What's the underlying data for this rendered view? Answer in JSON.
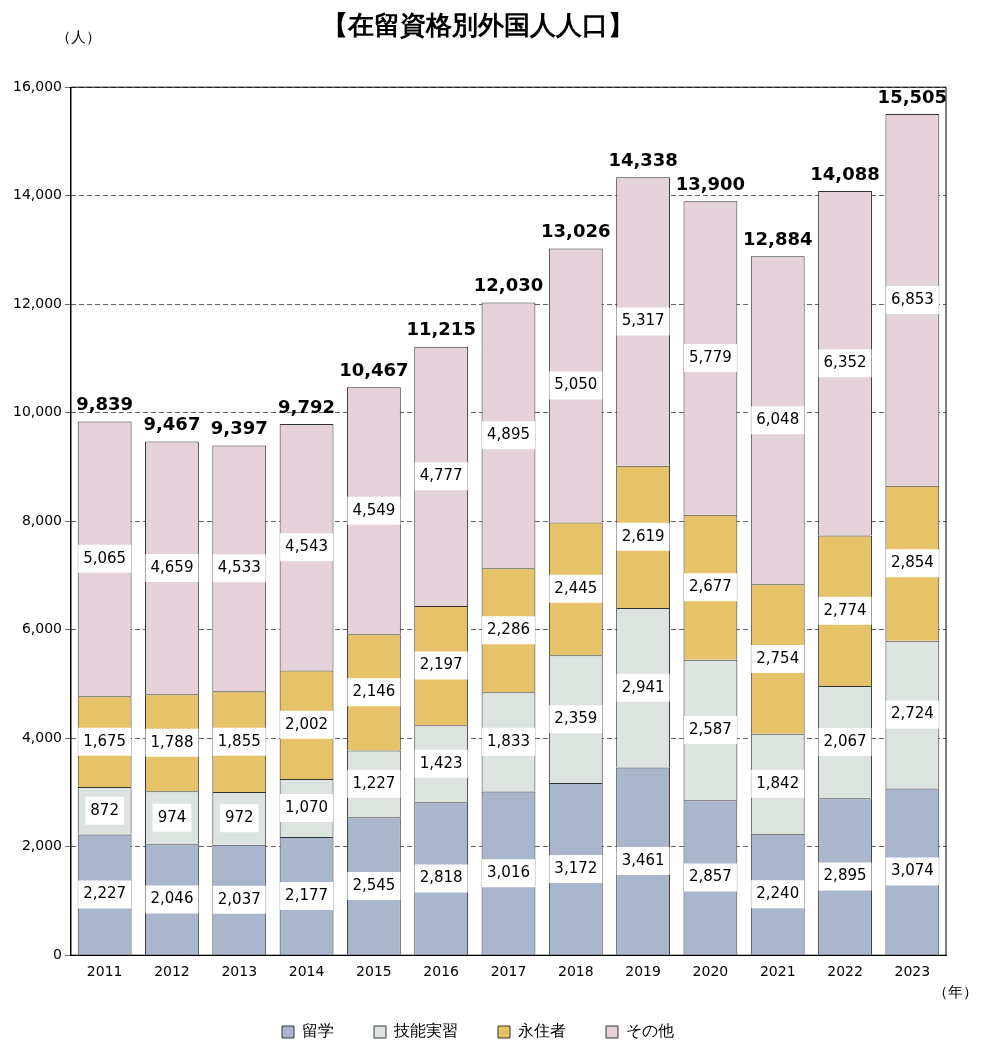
{
  "chart_data": {
    "type": "bar",
    "title": "【在留資格別外国人人口】",
    "ylabel": "（人）",
    "xlabel": "（年）",
    "stacked": true,
    "grid": "y",
    "legend": "bottom",
    "categories": [
      "2011",
      "2012",
      "2013",
      "2014",
      "2015",
      "2016",
      "2017",
      "2018",
      "2019",
      "2020",
      "2021",
      "2022",
      "2023"
    ],
    "ylim": [
      0,
      16000
    ],
    "yticks": [
      {
        "value": 0,
        "label": "0"
      },
      {
        "value": 2000,
        "label": "2,000"
      },
      {
        "value": 4000,
        "label": "4,000"
      },
      {
        "value": 6000,
        "label": "6,000"
      },
      {
        "value": 8000,
        "label": "8,000"
      },
      {
        "value": 10000,
        "label": "10,000"
      },
      {
        "value": 12000,
        "label": "12,000"
      },
      {
        "value": 14000,
        "label": "14,000"
      },
      {
        "value": 16000,
        "label": "16,000"
      }
    ],
    "series": [
      {
        "name": "留学",
        "color": "#aab6cc",
        "values": [
          2227,
          2046,
          2037,
          2177,
          2545,
          2818,
          3016,
          3172,
          3461,
          2857,
          2240,
          2895,
          3074
        ],
        "value_labels": [
          "2,227",
          "2,046",
          "2,037",
          "2,177",
          "2,545",
          "2,818",
          "3,016",
          "3,172",
          "3,461",
          "2,857",
          "2,240",
          "2,895",
          "3,074"
        ]
      },
      {
        "name": "技能実習",
        "color": "#dde4e0",
        "values": [
          872,
          974,
          972,
          1070,
          1227,
          1423,
          1833,
          2359,
          2941,
          2587,
          1842,
          2067,
          2724
        ],
        "value_labels": [
          "872",
          "974",
          "972",
          "1,070",
          "1,227",
          "1,423",
          "1,833",
          "2,359",
          "2,941",
          "2,587",
          "1,842",
          "2,067",
          "2,724"
        ]
      },
      {
        "name": "永住者",
        "color": "#e6c268",
        "values": [
          1675,
          1788,
          1855,
          2002,
          2146,
          2197,
          2286,
          2445,
          2619,
          2677,
          2754,
          2774,
          2854
        ],
        "value_labels": [
          "1,675",
          "1,788",
          "1,855",
          "2,002",
          "2,146",
          "2,197",
          "2,286",
          "2,445",
          "2,619",
          "2,677",
          "2,754",
          "2,774",
          "2,854"
        ]
      },
      {
        "name": "その他",
        "color": "#e6d2da",
        "values": [
          5065,
          4659,
          4533,
          4543,
          4549,
          4777,
          4895,
          5050,
          5317,
          5779,
          6048,
          6352,
          6853
        ],
        "value_labels": [
          "5,065",
          "4,659",
          "4,533",
          "4,543",
          "4,549",
          "4,777",
          "4,895",
          "5,050",
          "5,317",
          "5,779",
          "6,048",
          "6,352",
          "6,853"
        ]
      }
    ],
    "totals": [
      "9,839",
      "9,467",
      "9,397",
      "9,792",
      "10,467",
      "11,215",
      "12,030",
      "13,026",
      "14,338",
      "13,900",
      "12,884",
      "14,088",
      "15,505"
    ]
  }
}
